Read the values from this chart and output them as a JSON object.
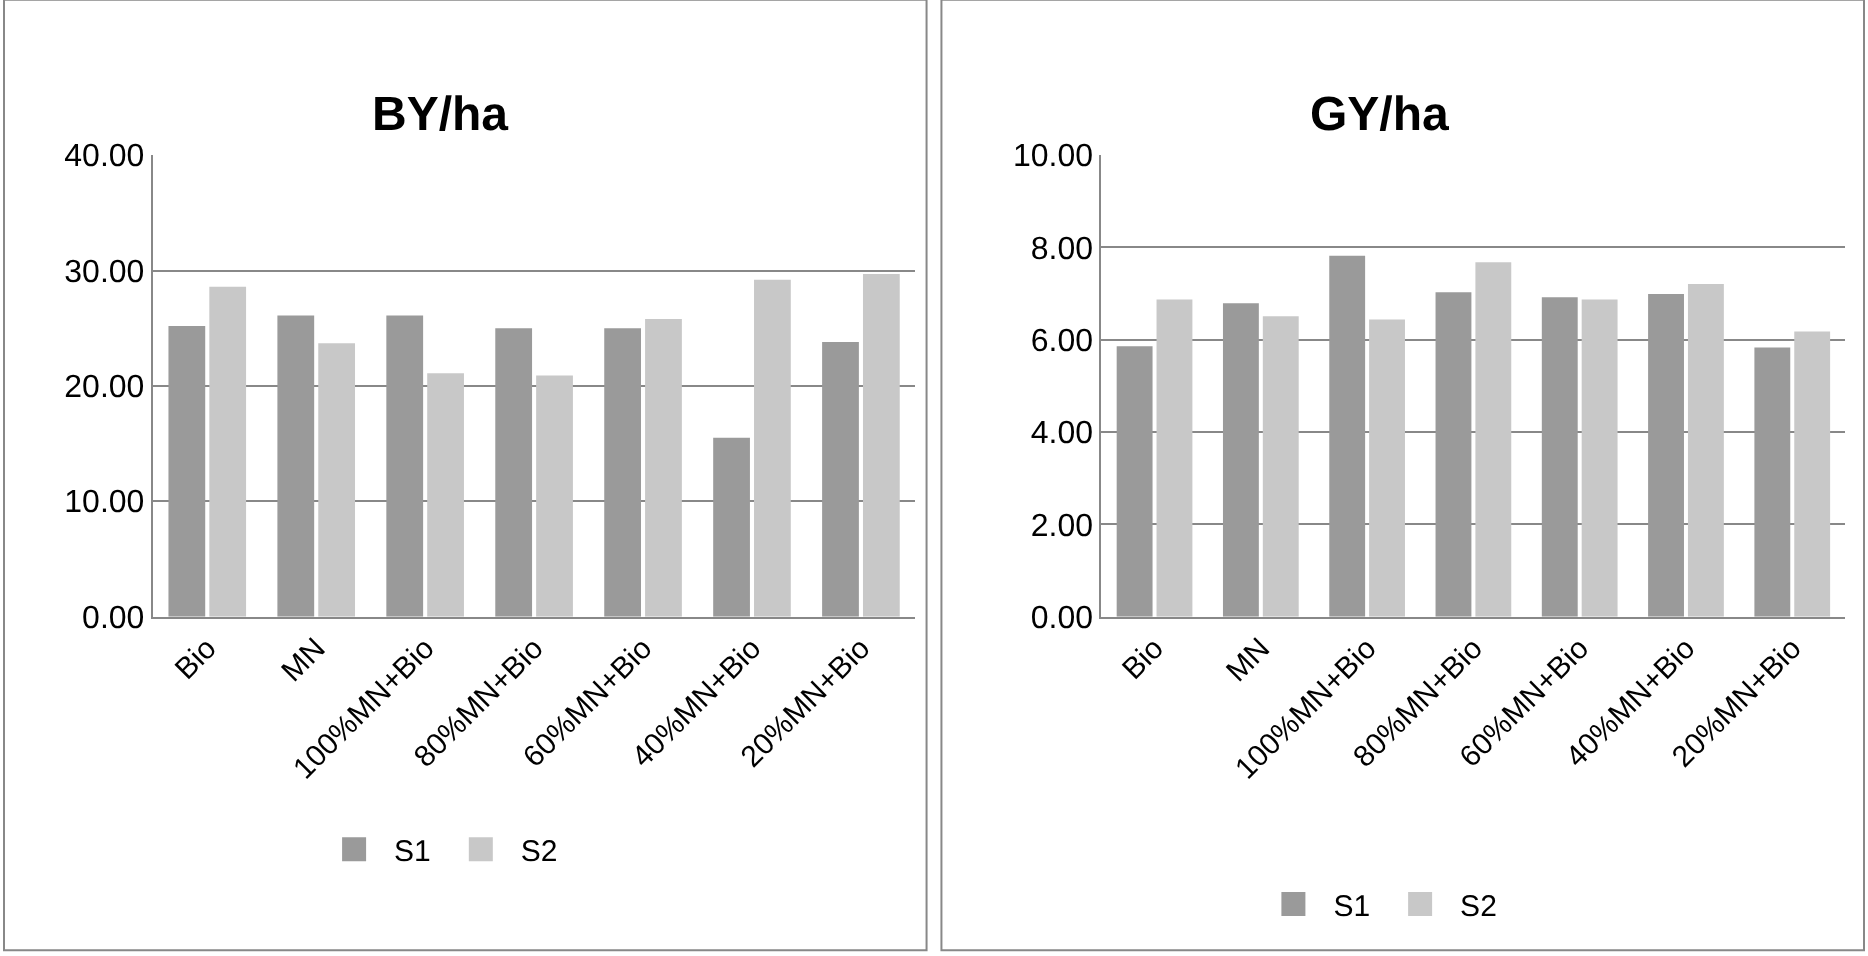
{
  "chart_data": [
    {
      "type": "bar",
      "title": "BY/ha",
      "categories": [
        "Bio",
        "MN",
        "100%MN+Bio",
        "80%MN+Bio",
        "60%MN+Bio",
        "40%MN+Bio",
        "20%MN+Bio"
      ],
      "series": [
        {
          "name": "S1",
          "color": "#9a9a9a",
          "values": [
            25.2,
            26.1,
            26.1,
            25.0,
            25.0,
            15.5,
            23.8
          ]
        },
        {
          "name": "S2",
          "color": "#c8c8c8",
          "values": [
            28.6,
            23.7,
            21.1,
            20.9,
            25.8,
            29.2,
            29.7
          ]
        }
      ],
      "ylim": [
        0,
        40
      ],
      "yticks": [
        {
          "value": 0,
          "label": "0.00"
        },
        {
          "value": 10,
          "label": "10.00"
        },
        {
          "value": 20,
          "label": "20.00"
        },
        {
          "value": 30,
          "label": "30.00"
        },
        {
          "value": 40,
          "label": "40.00"
        }
      ],
      "grid": "y",
      "legend": "bottom"
    },
    {
      "type": "bar",
      "title": "GY/ha",
      "categories": [
        "Bio",
        "MN",
        "100%MN+Bio",
        "80%MN+Bio",
        "60%MN+Bio",
        "40%MN+Bio",
        "20%MN+Bio"
      ],
      "series": [
        {
          "name": "S1",
          "color": "#9a9a9a",
          "values": [
            5.86,
            6.79,
            7.82,
            7.03,
            6.92,
            6.99,
            5.83
          ]
        },
        {
          "name": "S2",
          "color": "#c8c8c8",
          "values": [
            6.87,
            6.51,
            6.44,
            7.68,
            6.87,
            7.21,
            6.18
          ]
        }
      ],
      "ylim": [
        0,
        10
      ],
      "yticks": [
        {
          "value": 0,
          "label": "0.00"
        },
        {
          "value": 2,
          "label": "2.00"
        },
        {
          "value": 4,
          "label": "4.00"
        },
        {
          "value": 6,
          "label": "6.00"
        },
        {
          "value": 8,
          "label": "8.00"
        },
        {
          "value": 10,
          "label": "10.00"
        }
      ],
      "grid": "y",
      "legend": "bottom"
    }
  ]
}
